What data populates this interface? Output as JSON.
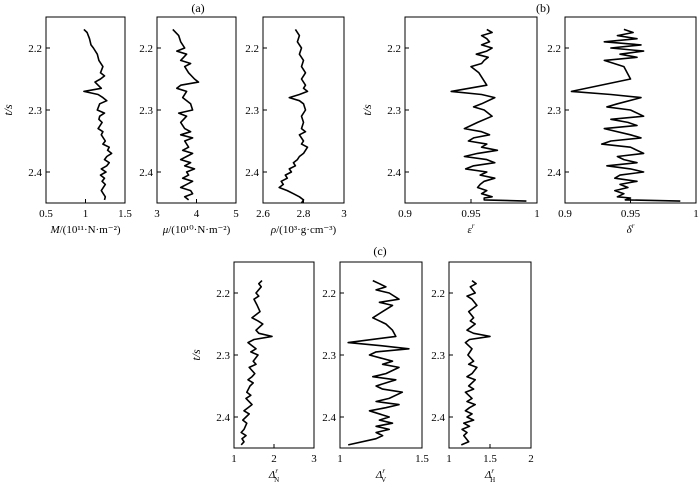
{
  "figure": {
    "panel_labels": [
      "(a)",
      "(b)",
      "(c)"
    ]
  },
  "chart_data": [
    {
      "id": "M",
      "group": "a",
      "type": "line",
      "ylabel": "t/s",
      "xlabel": {
        "var": "M",
        "unit": "/(10¹¹·N·m⁻²)"
      },
      "xlim": [
        0.5,
        1.5
      ],
      "xticks": [
        "0.5",
        "1",
        "1.5"
      ],
      "ylim": [
        2.15,
        2.45
      ],
      "yticks": [
        "2.2",
        "2.3",
        "2.4"
      ],
      "y_reversed": true,
      "x": [
        0.98,
        1.02,
        1.05,
        1.07,
        1.1,
        1.15,
        1.17,
        1.22,
        1.19,
        1.24,
        1.19,
        1.12,
        1.16,
        1.2,
        0.98,
        1.16,
        1.22,
        1.27,
        1.18,
        1.15,
        1.24,
        1.18,
        1.17,
        1.21,
        1.16,
        1.22,
        1.2,
        1.25,
        1.22,
        1.3,
        1.28,
        1.33,
        1.27,
        1.24,
        1.3,
        1.27,
        1.2,
        1.26,
        1.19,
        1.24,
        1.21,
        1.25,
        1.2,
        1.25,
        1.24
      ],
      "y": [
        2.17,
        2.175,
        2.185,
        2.195,
        2.2,
        2.21,
        2.22,
        2.23,
        2.24,
        2.245,
        2.25,
        2.255,
        2.26,
        2.265,
        2.27,
        2.275,
        2.28,
        2.285,
        2.29,
        2.3,
        2.305,
        2.31,
        2.315,
        2.32,
        2.33,
        2.335,
        2.34,
        2.35,
        2.355,
        2.36,
        2.365,
        2.37,
        2.375,
        2.38,
        2.385,
        2.39,
        2.395,
        2.4,
        2.405,
        2.41,
        2.415,
        2.42,
        2.43,
        2.44,
        2.445
      ]
    },
    {
      "id": "mu",
      "group": "a",
      "type": "line",
      "ylabel": "",
      "xlabel": {
        "var": "μ",
        "unit": "/(10¹⁰·N·m⁻²)"
      },
      "xlim": [
        3,
        5
      ],
      "xticks": [
        "3",
        "4",
        "5"
      ],
      "ylim": [
        2.15,
        2.45
      ],
      "yticks": [
        "2.2",
        "2.3",
        "2.4"
      ],
      "y_reversed": true,
      "x": [
        3.4,
        3.55,
        3.6,
        3.7,
        3.5,
        3.75,
        3.6,
        3.85,
        3.7,
        3.8,
        3.95,
        4.05,
        3.6,
        3.5,
        3.75,
        3.65,
        3.85,
        3.9,
        3.55,
        3.75,
        3.6,
        3.7,
        3.85,
        3.6,
        3.9,
        3.7,
        3.8,
        3.65,
        3.9,
        3.75,
        3.6,
        3.85,
        3.7,
        3.95,
        3.75,
        3.8,
        3.65,
        3.9,
        3.75,
        3.6,
        3.85,
        3.9,
        3.7,
        3.8
      ],
      "y": [
        2.17,
        2.18,
        2.19,
        2.2,
        2.205,
        2.21,
        2.22,
        2.225,
        2.23,
        2.24,
        2.25,
        2.255,
        2.26,
        2.265,
        2.27,
        2.28,
        2.29,
        2.3,
        2.305,
        2.31,
        2.32,
        2.33,
        2.335,
        2.34,
        2.345,
        2.35,
        2.36,
        2.365,
        2.37,
        2.375,
        2.38,
        2.385,
        2.39,
        2.395,
        2.4,
        2.405,
        2.41,
        2.415,
        2.42,
        2.425,
        2.43,
        2.435,
        2.44,
        2.445
      ]
    },
    {
      "id": "rho",
      "group": "a",
      "type": "line",
      "ylabel": "",
      "xlabel": {
        "var": "ρ",
        "unit": "/(10³·g·cm⁻³)"
      },
      "xlim": [
        2.6,
        3
      ],
      "xticks": [
        "2.6",
        "2.8",
        "3"
      ],
      "ylim": [
        2.15,
        2.45
      ],
      "yticks": [
        "2.2",
        "2.3",
        "2.4"
      ],
      "y_reversed": true,
      "x": [
        2.76,
        2.78,
        2.77,
        2.79,
        2.78,
        2.8,
        2.79,
        2.81,
        2.8,
        2.79,
        2.81,
        2.8,
        2.82,
        2.78,
        2.73,
        2.78,
        2.8,
        2.81,
        2.79,
        2.8,
        2.79,
        2.81,
        2.78,
        2.8,
        2.79,
        2.82,
        2.8,
        2.78,
        2.77,
        2.75,
        2.76,
        2.73,
        2.74,
        2.71,
        2.72,
        2.69,
        2.7,
        2.68,
        2.72,
        2.75,
        2.78,
        2.8,
        2.79
      ],
      "y": [
        2.17,
        2.18,
        2.19,
        2.2,
        2.21,
        2.22,
        2.23,
        2.24,
        2.245,
        2.25,
        2.26,
        2.265,
        2.27,
        2.275,
        2.28,
        2.285,
        2.29,
        2.3,
        2.31,
        2.32,
        2.33,
        2.335,
        2.34,
        2.35,
        2.355,
        2.36,
        2.37,
        2.375,
        2.38,
        2.385,
        2.39,
        2.395,
        2.4,
        2.405,
        2.41,
        2.415,
        2.42,
        2.425,
        2.43,
        2.435,
        2.44,
        2.445,
        2.45
      ]
    },
    {
      "id": "eps",
      "group": "b",
      "type": "line",
      "ylabel": "t/s",
      "xlabel": {
        "var": "ε",
        "sup": "r",
        "sub": "",
        "unit": ""
      },
      "xlim": [
        0.9,
        1
      ],
      "xticks": [
        "0.9",
        "0.95",
        "1"
      ],
      "ylim": [
        2.15,
        2.45
      ],
      "yticks": [
        "2.2",
        "2.3",
        "2.4"
      ],
      "y_reversed": true,
      "x": [
        0.962,
        0.966,
        0.958,
        0.962,
        0.964,
        0.958,
        0.966,
        0.962,
        0.954,
        0.963,
        0.96,
        0.958,
        0.95,
        0.956,
        0.962,
        0.935,
        0.958,
        0.968,
        0.958,
        0.952,
        0.96,
        0.966,
        0.955,
        0.945,
        0.958,
        0.964,
        0.952,
        0.948,
        0.962,
        0.958,
        0.97,
        0.955,
        0.945,
        0.962,
        0.968,
        0.952,
        0.946,
        0.962,
        0.957,
        0.968,
        0.96,
        0.957,
        0.955,
        0.962,
        0.958,
        0.966,
        0.96,
        0.96,
        0.992
      ],
      "y": [
        2.17,
        2.175,
        2.18,
        2.185,
        2.19,
        2.195,
        2.2,
        2.205,
        2.21,
        2.215,
        2.22,
        2.225,
        2.23,
        2.24,
        2.26,
        2.27,
        2.275,
        2.28,
        2.29,
        2.295,
        2.3,
        2.31,
        2.32,
        2.33,
        2.335,
        2.34,
        2.345,
        2.35,
        2.355,
        2.36,
        2.365,
        2.37,
        2.375,
        2.38,
        2.385,
        2.39,
        2.395,
        2.4,
        2.405,
        2.41,
        2.415,
        2.42,
        2.425,
        2.43,
        2.435,
        2.44,
        2.442,
        2.445,
        2.447
      ]
    },
    {
      "id": "delta",
      "group": "b",
      "type": "line",
      "ylabel": "",
      "xlabel": {
        "var": "δ",
        "sup": "r",
        "sub": "",
        "unit": ""
      },
      "xlim": [
        0.9,
        1
      ],
      "xticks": [
        "0.9",
        "0.95",
        "1"
      ],
      "ylim": [
        2.15,
        2.45
      ],
      "yticks": [
        "2.2",
        "2.3",
        "2.4"
      ],
      "y_reversed": true,
      "x": [
        0.945,
        0.952,
        0.94,
        0.955,
        0.93,
        0.958,
        0.935,
        0.96,
        0.942,
        0.955,
        0.93,
        0.945,
        0.95,
        0.905,
        0.935,
        0.958,
        0.94,
        0.932,
        0.95,
        0.96,
        0.935,
        0.948,
        0.955,
        0.93,
        0.95,
        0.958,
        0.935,
        0.928,
        0.95,
        0.96,
        0.94,
        0.945,
        0.955,
        0.932,
        0.95,
        0.96,
        0.942,
        0.938,
        0.955,
        0.942,
        0.948,
        0.938,
        0.945,
        0.94,
        0.95,
        0.946,
        0.988
      ],
      "y": [
        2.17,
        2.175,
        2.18,
        2.185,
        2.19,
        2.195,
        2.2,
        2.205,
        2.21,
        2.215,
        2.22,
        2.23,
        2.25,
        2.27,
        2.275,
        2.28,
        2.29,
        2.295,
        2.3,
        2.31,
        2.315,
        2.32,
        2.325,
        2.33,
        2.34,
        2.345,
        2.35,
        2.355,
        2.36,
        2.37,
        2.375,
        2.38,
        2.385,
        2.39,
        2.395,
        2.4,
        2.405,
        2.41,
        2.415,
        2.42,
        2.425,
        2.43,
        2.435,
        2.44,
        2.442,
        2.445,
        2.447
      ]
    },
    {
      "id": "dN",
      "group": "c",
      "type": "line",
      "ylabel": "t/s",
      "xlabel": {
        "var": "Δ",
        "sup": "r",
        "sub": "N",
        "unit": ""
      },
      "xlim": [
        1,
        3
      ],
      "xticks": [
        "1",
        "2",
        "3"
      ],
      "ylim": [
        2.15,
        2.45
      ],
      "yticks": [
        "2.2",
        "2.3",
        "2.4"
      ],
      "y_reversed": true,
      "x": [
        1.7,
        1.62,
        1.68,
        1.55,
        1.62,
        1.5,
        1.58,
        1.65,
        1.45,
        1.6,
        1.72,
        1.55,
        1.62,
        1.95,
        1.5,
        1.35,
        1.55,
        1.42,
        1.6,
        1.48,
        1.55,
        1.38,
        1.52,
        1.45,
        1.35,
        1.48,
        1.4,
        1.32,
        1.42,
        1.3,
        1.45,
        1.35,
        1.25,
        1.38,
        1.3,
        1.22,
        1.32,
        1.25,
        1.18,
        1.3,
        1.2,
        1.25,
        1.18
      ],
      "y": [
        2.18,
        2.185,
        2.19,
        2.2,
        2.205,
        2.21,
        2.22,
        2.23,
        2.24,
        2.245,
        2.25,
        2.26,
        2.265,
        2.27,
        2.275,
        2.28,
        2.29,
        2.295,
        2.3,
        2.31,
        2.315,
        2.32,
        2.33,
        2.335,
        2.34,
        2.345,
        2.35,
        2.36,
        2.365,
        2.37,
        2.38,
        2.385,
        2.39,
        2.395,
        2.4,
        2.405,
        2.41,
        2.42,
        2.425,
        2.43,
        2.435,
        2.44,
        2.445
      ]
    },
    {
      "id": "dV",
      "group": "c",
      "type": "line",
      "ylabel": "",
      "xlabel": {
        "var": "Δ",
        "sup": "r",
        "sub": "V",
        "unit": ""
      },
      "xlim": [
        1,
        1.5
      ],
      "xticks": [
        "1",
        "1.5"
      ],
      "ylim": [
        2.15,
        2.45
      ],
      "yticks": [
        "2.2",
        "2.3",
        "2.4"
      ],
      "y_reversed": true,
      "x": [
        1.2,
        1.24,
        1.28,
        1.22,
        1.3,
        1.36,
        1.24,
        1.32,
        1.26,
        1.2,
        1.28,
        1.32,
        1.34,
        1.05,
        1.25,
        1.42,
        1.22,
        1.18,
        1.32,
        1.26,
        1.36,
        1.28,
        1.2,
        1.34,
        1.22,
        1.26,
        1.38,
        1.3,
        1.22,
        1.36,
        1.28,
        1.18,
        1.3,
        1.24,
        1.32,
        1.22,
        1.3,
        1.22,
        1.26,
        1.22,
        1.05
      ],
      "y": [
        2.18,
        2.185,
        2.19,
        2.195,
        2.2,
        2.21,
        2.215,
        2.22,
        2.23,
        2.24,
        2.25,
        2.26,
        2.27,
        2.28,
        2.285,
        2.29,
        2.295,
        2.3,
        2.31,
        2.315,
        2.32,
        2.33,
        2.335,
        2.34,
        2.35,
        2.355,
        2.36,
        2.37,
        2.375,
        2.38,
        2.385,
        2.39,
        2.4,
        2.405,
        2.41,
        2.415,
        2.42,
        2.425,
        2.43,
        2.435,
        2.445
      ]
    },
    {
      "id": "dH",
      "group": "c",
      "type": "line",
      "ylabel": "",
      "xlabel": {
        "var": "Δ",
        "sup": "r",
        "sub": "H",
        "unit": ""
      },
      "xlim": [
        1,
        2
      ],
      "xticks": [
        "1",
        "1.5",
        "2"
      ],
      "ylim": [
        2.15,
        2.45
      ],
      "yticks": [
        "2.2",
        "2.3",
        "2.4"
      ],
      "y_reversed": true,
      "x": [
        1.28,
        1.33,
        1.26,
        1.32,
        1.22,
        1.28,
        1.34,
        1.24,
        1.3,
        1.26,
        1.32,
        1.22,
        1.3,
        1.5,
        1.25,
        1.2,
        1.28,
        1.23,
        1.3,
        1.24,
        1.34,
        1.28,
        1.22,
        1.32,
        1.24,
        1.3,
        1.2,
        1.28,
        1.22,
        1.32,
        1.25,
        1.2,
        1.28,
        1.22,
        1.3,
        1.18,
        1.25,
        1.16,
        1.22,
        1.18,
        1.24,
        1.15
      ],
      "y": [
        2.18,
        2.185,
        2.19,
        2.2,
        2.205,
        2.21,
        2.22,
        2.23,
        2.24,
        2.245,
        2.25,
        2.26,
        2.265,
        2.27,
        2.275,
        2.28,
        2.29,
        2.3,
        2.31,
        2.315,
        2.32,
        2.33,
        2.335,
        2.34,
        2.35,
        2.355,
        2.36,
        2.37,
        2.375,
        2.38,
        2.385,
        2.39,
        2.395,
        2.4,
        2.405,
        2.41,
        2.415,
        2.42,
        2.425,
        2.43,
        2.44,
        2.445
      ]
    }
  ]
}
